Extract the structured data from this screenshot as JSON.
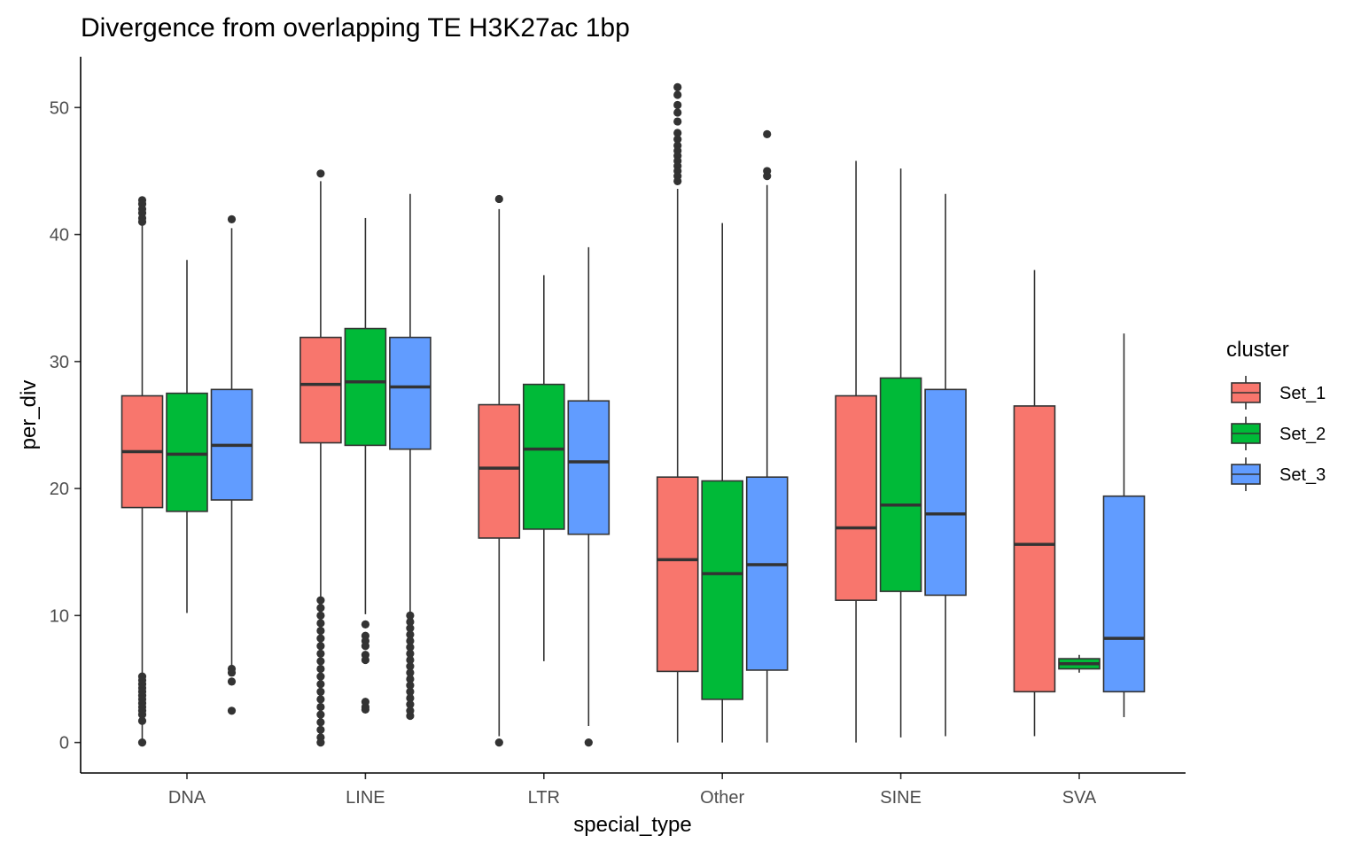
{
  "chart_data": {
    "type": "boxplot",
    "title": "Divergence from overlapping TE H3K27ac 1bp",
    "xlabel": "special_type",
    "ylabel": "per_div",
    "ylim": [
      -2.4,
      54
    ],
    "y_ticks": [
      0,
      10,
      20,
      30,
      40,
      50
    ],
    "categories": [
      "DNA",
      "LINE",
      "LTR",
      "Other",
      "SINE",
      "SVA"
    ],
    "legend": {
      "title": "cluster",
      "position": "right"
    },
    "colors": {
      "Set_1": "#F8766D",
      "Set_2": "#00BA38",
      "Set_3": "#619CFF"
    },
    "series": [
      {
        "name": "Set_1",
        "boxes": [
          {
            "category": "DNA",
            "lower": 0.0,
            "q1": 18.5,
            "median": 22.9,
            "q3": 27.3,
            "upper": 40.9,
            "outliers": [
              42.7,
              42.4,
              42.0,
              41.7,
              41.3,
              41.0,
              5.2,
              4.9,
              4.6,
              4.3,
              4.0,
              3.7,
              3.4,
              3.1,
              2.8,
              2.5,
              2.2,
              1.7,
              0.0
            ]
          },
          {
            "category": "LINE",
            "lower": 11.4,
            "q1": 23.6,
            "median": 28.2,
            "q3": 31.9,
            "upper": 44.2,
            "outliers": [
              44.8,
              11.2,
              10.6,
              10.0,
              9.4,
              8.8,
              8.2,
              7.6,
              7.0,
              6.4,
              5.8,
              5.2,
              4.6,
              4.0,
              3.4,
              2.8,
              2.2,
              1.6,
              1.0,
              0.4,
              0.0
            ]
          },
          {
            "category": "LTR",
            "lower": 0.5,
            "q1": 16.1,
            "median": 21.6,
            "q3": 26.6,
            "upper": 42.0,
            "outliers": [
              42.8,
              0.0
            ]
          },
          {
            "category": "Other",
            "lower": 0.0,
            "q1": 5.6,
            "median": 14.4,
            "q3": 20.9,
            "upper": 43.6,
            "outliers": [
              51.6,
              51.0,
              50.2,
              49.6,
              48.9,
              48.0,
              47.5,
              47.0,
              46.6,
              46.2,
              45.8,
              45.4,
              45.0,
              44.6,
              44.2
            ]
          },
          {
            "category": "SINE",
            "lower": 0.0,
            "q1": 11.2,
            "median": 16.9,
            "q3": 27.3,
            "upper": 45.8,
            "outliers": []
          },
          {
            "category": "SVA",
            "lower": 0.5,
            "q1": 4.0,
            "median": 15.6,
            "q3": 26.5,
            "upper": 37.2,
            "outliers": []
          }
        ]
      },
      {
        "name": "Set_2",
        "boxes": [
          {
            "category": "DNA",
            "lower": 10.2,
            "q1": 18.2,
            "median": 22.7,
            "q3": 27.5,
            "upper": 38.0,
            "outliers": []
          },
          {
            "category": "LINE",
            "lower": 10.1,
            "q1": 23.4,
            "median": 28.4,
            "q3": 32.6,
            "upper": 41.3,
            "outliers": [
              9.3,
              8.4,
              8.0,
              7.6,
              6.9,
              6.5,
              3.2,
              2.8,
              2.6
            ]
          },
          {
            "category": "LTR",
            "lower": 6.4,
            "q1": 16.8,
            "median": 23.1,
            "q3": 28.2,
            "upper": 36.8,
            "outliers": []
          },
          {
            "category": "Other",
            "lower": 0.0,
            "q1": 3.4,
            "median": 13.3,
            "q3": 20.6,
            "upper": 40.9,
            "outliers": []
          },
          {
            "category": "SINE",
            "lower": 0.4,
            "q1": 11.9,
            "median": 18.7,
            "q3": 28.7,
            "upper": 45.2,
            "outliers": []
          },
          {
            "category": "SVA",
            "lower": 5.5,
            "q1": 5.8,
            "median": 6.2,
            "q3": 6.6,
            "upper": 6.9,
            "outliers": []
          }
        ]
      },
      {
        "name": "Set_3",
        "boxes": [
          {
            "category": "DNA",
            "lower": 6.1,
            "q1": 19.1,
            "median": 23.4,
            "q3": 27.8,
            "upper": 40.5,
            "outliers": [
              41.2,
              5.8,
              5.5,
              4.8,
              2.5
            ]
          },
          {
            "category": "LINE",
            "lower": 10.2,
            "q1": 23.1,
            "median": 28.0,
            "q3": 31.9,
            "upper": 43.2,
            "outliers": [
              10.0,
              9.5,
              9.0,
              8.5,
              8.0,
              7.5,
              7.0,
              6.5,
              6.0,
              5.5,
              5.0,
              4.5,
              4.0,
              3.5,
              3.0,
              2.5,
              2.1
            ]
          },
          {
            "category": "LTR",
            "lower": 1.3,
            "q1": 16.4,
            "median": 22.1,
            "q3": 26.9,
            "upper": 39.0,
            "outliers": [
              0.0
            ]
          },
          {
            "category": "Other",
            "lower": 0.0,
            "q1": 5.7,
            "median": 14.0,
            "q3": 20.9,
            "upper": 43.9,
            "outliers": [
              47.9,
              45.0,
              44.6
            ]
          },
          {
            "category": "SINE",
            "lower": 0.5,
            "q1": 11.6,
            "median": 18.0,
            "q3": 27.8,
            "upper": 43.2,
            "outliers": []
          },
          {
            "category": "SVA",
            "lower": 2.0,
            "q1": 4.0,
            "median": 8.2,
            "q3": 19.4,
            "upper": 32.2,
            "outliers": []
          }
        ]
      }
    ]
  }
}
